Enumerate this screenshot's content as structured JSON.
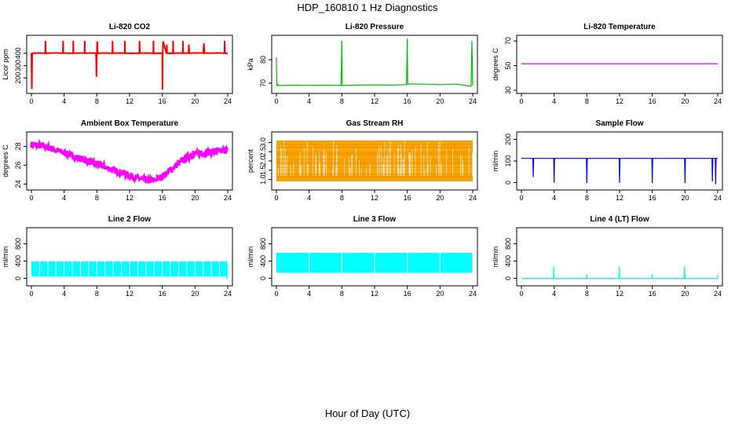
{
  "figure": {
    "title": "HDP_160810  1 Hz Diagnostics",
    "xlabel": "Hour of Day (UTC)"
  },
  "chart_data": [
    {
      "type": "line",
      "title": "Li-820 CO2",
      "ylabel": "Licor ppm",
      "color": "#ff0000",
      "xlim": [
        0,
        24
      ],
      "ylim": [
        100,
        520
      ],
      "xticks": [
        "0",
        "4",
        "8",
        "12",
        "16",
        "20",
        "24"
      ],
      "xtick_values": [
        0,
        4,
        8,
        12,
        16,
        20,
        24
      ],
      "yticks": [
        "200",
        "300",
        "400"
      ],
      "ytick_values": [
        200,
        300,
        400
      ],
      "x": [
        0,
        0.05,
        0.1,
        1.0,
        1.7,
        1.72,
        1.75,
        2.0,
        3.0,
        3.85,
        3.87,
        3.9,
        4.5,
        5.1,
        5.12,
        5.15,
        6.0,
        6.5,
        6.52,
        6.55,
        7.4,
        7.9,
        7.95,
        8.0,
        8.05,
        8.1,
        9.0,
        9.9,
        9.92,
        9.95,
        11.0,
        11.4,
        11.42,
        11.45,
        12.5,
        13.2,
        13.22,
        13.25,
        14.0,
        14.9,
        14.92,
        14.95,
        15.6,
        16.0,
        16.02,
        16.05,
        16.1,
        16.5,
        16.55,
        16.6,
        17.0,
        17.3,
        17.32,
        17.35,
        18.0,
        18.5,
        18.52,
        18.55,
        19.2,
        19.25,
        19.3,
        20.0,
        21.0,
        21.1,
        21.15,
        21.2,
        22.0,
        23.0,
        23.6,
        23.62,
        23.65,
        24.0
      ],
      "y": [
        400,
        110,
        400,
        402,
        400,
        500,
        400,
        401,
        403,
        400,
        500,
        402,
        401,
        400,
        500,
        400,
        402,
        401,
        500,
        400,
        402,
        401,
        210,
        400,
        495,
        400,
        402,
        400,
        500,
        401,
        402,
        400,
        500,
        400,
        401,
        400,
        500,
        401,
        402,
        400,
        500,
        400,
        401,
        400,
        105,
        400,
        495,
        400,
        470,
        400,
        401,
        400,
        500,
        400,
        402,
        400,
        500,
        401,
        402,
        470,
        400,
        403,
        402,
        480,
        400,
        402,
        401,
        403,
        400,
        500,
        400,
        400
      ]
    },
    {
      "type": "line",
      "title": "Li-820 Pressure",
      "ylabel": "kPa",
      "color": "#00c000",
      "xlim": [
        0,
        24
      ],
      "ylim": [
        67,
        89
      ],
      "xticks": [
        "0",
        "4",
        "8",
        "12",
        "16",
        "20",
        "24"
      ],
      "xtick_values": [
        0,
        4,
        8,
        12,
        16,
        20,
        24
      ],
      "yticks": [
        "70",
        "80"
      ],
      "ytick_values": [
        70,
        80
      ],
      "x": [
        0,
        0.05,
        0.1,
        0.15,
        0.3,
        2.0,
        4.0,
        6.0,
        7.9,
        8.0,
        8.05,
        8.1,
        10.0,
        12.0,
        14.0,
        15.9,
        16.0,
        16.05,
        16.1,
        18.0,
        20.0,
        22.0,
        23.8,
        23.9,
        24.0
      ],
      "y": [
        81,
        69,
        69,
        69.5,
        69,
        69.2,
        69.1,
        69.2,
        69.1,
        88,
        69,
        69.1,
        69.2,
        69.3,
        69.2,
        69.4,
        89,
        69.6,
        69.7,
        69.6,
        69.4,
        69.6,
        68.7,
        88,
        69
      ]
    },
    {
      "type": "line",
      "title": "Li-820 Temperature",
      "ylabel": "degrees C",
      "color": "#ff00ff",
      "xlim": [
        0,
        24
      ],
      "ylim": [
        30,
        72
      ],
      "xticks": [
        "0",
        "4",
        "8",
        "12",
        "16",
        "20",
        "24"
      ],
      "xtick_values": [
        0,
        4,
        8,
        12,
        16,
        20,
        24
      ],
      "yticks": [
        "30",
        "50",
        "70"
      ],
      "ytick_values": [
        30,
        50,
        70
      ],
      "x": [
        0,
        24
      ],
      "y": [
        51.5,
        51.5
      ]
    },
    {
      "type": "line",
      "title": "Ambient Box Temperature",
      "ylabel": "degrees C",
      "color": "#ff00ff",
      "xlim": [
        0,
        24
      ],
      "ylim": [
        23.7,
        29.2
      ],
      "xticks": [
        "0",
        "4",
        "8",
        "12",
        "16",
        "20",
        "24"
      ],
      "xtick_values": [
        0,
        4,
        8,
        12,
        16,
        20,
        24
      ],
      "yticks": [
        "24",
        "26",
        "28"
      ],
      "ytick_values": [
        24,
        26,
        28
      ],
      "x": [
        0,
        1,
        2,
        3,
        4,
        5,
        6,
        7,
        8,
        9,
        10,
        11,
        12,
        13,
        14,
        15,
        16,
        17,
        18,
        19,
        20,
        21,
        22,
        23,
        24
      ],
      "y": [
        28.2,
        28.1,
        27.9,
        27.6,
        27.3,
        27.0,
        26.7,
        26.4,
        26.1,
        25.8,
        25.5,
        25.2,
        24.9,
        24.6,
        24.4,
        24.4,
        24.8,
        25.5,
        26.2,
        26.8,
        27.2,
        27.3,
        27.4,
        27.5,
        27.6
      ]
    },
    {
      "type": "line",
      "title": "Gas Stream RH",
      "ylabel": "percent",
      "color": "#ffa500",
      "xlim": [
        0,
        24
      ],
      "ylim": [
        0.6,
        3.4
      ],
      "xticks": [
        "0",
        "4",
        "8",
        "12",
        "16",
        "20",
        "24"
      ],
      "xtick_values": [
        0,
        4,
        8,
        12,
        16,
        20,
        24
      ],
      "yticks": [
        "1.0",
        "1.5",
        "2.0",
        "2.5",
        "3.0"
      ],
      "ytick_values": [
        1.0,
        1.5,
        2.0,
        2.5,
        3.0
      ],
      "band_low": 0.9,
      "band_high": 3.1
    },
    {
      "type": "line",
      "title": "Sample Flow",
      "ylabel": "ml/min",
      "color": "#0000ff",
      "xlim": [
        0,
        24
      ],
      "ylim": [
        -20,
        220
      ],
      "xticks": [
        "0",
        "4",
        "8",
        "12",
        "16",
        "20",
        "24"
      ],
      "xtick_values": [
        0,
        4,
        8,
        12,
        16,
        20,
        24
      ],
      "yticks": [
        "0",
        "100",
        "200"
      ],
      "ytick_values": [
        0,
        100,
        200
      ],
      "x": [
        0,
        1.4,
        1.45,
        1.5,
        3.95,
        4.0,
        4.05,
        7.95,
        8.0,
        8.05,
        11.95,
        12.0,
        12.05,
        15.95,
        16.0,
        16.05,
        19.95,
        20.0,
        20.05,
        23.3,
        23.35,
        23.4,
        23.7,
        23.75,
        23.8,
        24.0
      ],
      "y": [
        112,
        112,
        25,
        112,
        112,
        0,
        112,
        112,
        -2,
        112,
        112,
        -2,
        112,
        112,
        -2,
        112,
        112,
        -2,
        112,
        112,
        5,
        112,
        112,
        -8,
        112,
        112
      ]
    },
    {
      "type": "area",
      "title": "Line 2 Flow",
      "ylabel": "ml/min",
      "color": "#00ffff",
      "xlim": [
        0,
        24
      ],
      "ylim": [
        -100,
        1100
      ],
      "xticks": [
        "0",
        "4",
        "8",
        "12",
        "16",
        "20",
        "24"
      ],
      "xtick_values": [
        0,
        4,
        8,
        12,
        16,
        20,
        24
      ],
      "yticks": [
        "0",
        "400",
        "800"
      ],
      "ytick_values": [
        0,
        400,
        800
      ],
      "band_low": 40,
      "band_high": 390
    },
    {
      "type": "area",
      "title": "Line 3 Flow",
      "ylabel": "ml/min",
      "color": "#00ffff",
      "xlim": [
        0,
        24
      ],
      "ylim": [
        -100,
        1100
      ],
      "xticks": [
        "0",
        "4",
        "8",
        "12",
        "16",
        "20",
        "24"
      ],
      "xtick_values": [
        0,
        4,
        8,
        12,
        16,
        20,
        24
      ],
      "yticks": [
        "0",
        "400",
        "800"
      ],
      "ytick_values": [
        0,
        400,
        800
      ],
      "band_low": 130,
      "band_high": 590
    },
    {
      "type": "line",
      "title": "Line 4 (LT) Flow",
      "ylabel": "ml/min",
      "color": "#00ffff",
      "xlim": [
        0,
        24
      ],
      "ylim": [
        -100,
        1100
      ],
      "xticks": [
        "0",
        "4",
        "8",
        "12",
        "16",
        "20",
        "24"
      ],
      "xtick_values": [
        0,
        4,
        8,
        12,
        16,
        20,
        24
      ],
      "yticks": [
        "0",
        "400",
        "800"
      ],
      "ytick_values": [
        0,
        400,
        800
      ],
      "x": [
        0,
        3.9,
        3.95,
        4.0,
        4.05,
        7.95,
        8.0,
        8.05,
        11.9,
        11.95,
        12.0,
        12.05,
        15.95,
        16.0,
        16.05,
        19.9,
        19.95,
        20.0,
        20.05,
        23.95,
        24.0
      ],
      "y": [
        0,
        0,
        280,
        10,
        0,
        0,
        90,
        0,
        0,
        280,
        10,
        0,
        0,
        90,
        0,
        0,
        280,
        10,
        0,
        0,
        90
      ]
    }
  ]
}
